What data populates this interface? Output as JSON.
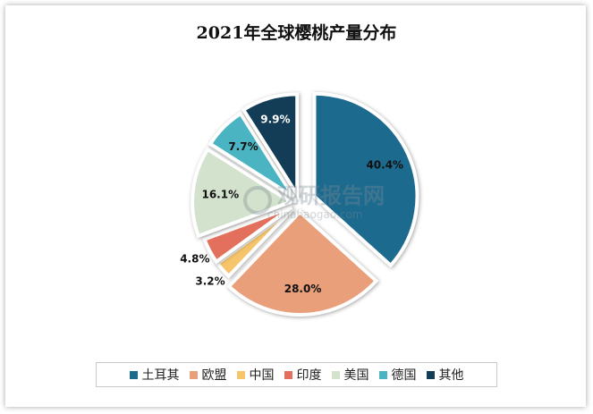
{
  "chart_data": {
    "type": "pie",
    "title": "2021年全球樱桃产量分布",
    "categories": [
      "土耳其",
      "欧盟",
      "中国",
      "印度",
      "美国",
      "德国",
      "其他"
    ],
    "values": [
      40.4,
      28.0,
      3.2,
      4.8,
      16.1,
      7.7,
      9.9
    ],
    "labels": [
      "40.4%",
      "28.0%",
      "3.2%",
      "4.8%",
      "16.1%",
      "7.7%",
      "9.9%"
    ],
    "unit": "%",
    "colors": [
      "#1d6a8f",
      "#e89f7a",
      "#f6c46b",
      "#e2705c",
      "#d2e2cd",
      "#4bb4c3",
      "#133d57"
    ],
    "legend_position": "bottom",
    "exploded": true
  },
  "watermark": {
    "text": "观研报告网",
    "url": "chinabaogao.com"
  }
}
